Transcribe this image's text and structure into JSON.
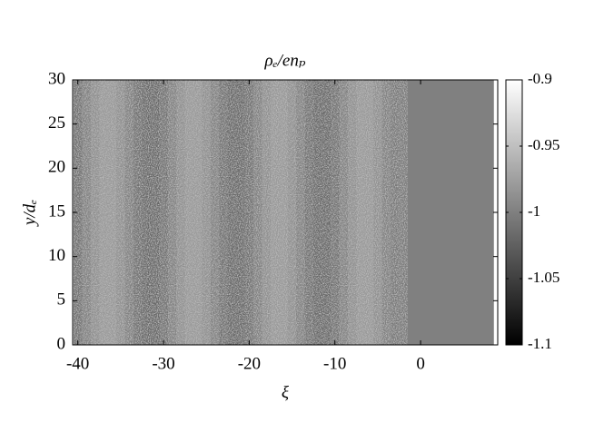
{
  "chart_data": {
    "type": "heatmap",
    "title": "ρₑ/enₚ",
    "x_label": "ξ",
    "y_label": "y/dₑ",
    "x": [
      -40,
      -39,
      -38,
      -37,
      -36,
      -35,
      -34,
      -33,
      -32,
      -31,
      -30,
      -29,
      -28,
      -27,
      -26,
      -25,
      -24,
      -23,
      -22,
      -21,
      -20,
      -19,
      -18,
      -17,
      -16,
      -15,
      -14,
      -13,
      -12,
      -11,
      -10,
      -9,
      -8,
      -7,
      -6,
      -5,
      -4,
      -3,
      -2,
      -1,
      0,
      1,
      2,
      3,
      4,
      5,
      6,
      7,
      8
    ],
    "values": [
      -1.012,
      -1,
      -0.988,
      -0.981,
      -0.981,
      -0.988,
      -1,
      -1.012,
      -1.019,
      -1.019,
      -1.012,
      -1,
      -0.988,
      -0.981,
      -0.981,
      -0.988,
      -1,
      -1.012,
      -1.019,
      -1.019,
      -1.012,
      -1,
      -0.988,
      -0.981,
      -0.981,
      -0.988,
      -1,
      -1.012,
      -1.019,
      -1.019,
      -1.012,
      -1,
      -0.988,
      -0.981,
      -0.981,
      -0.988,
      -1,
      -1.006,
      -1.005,
      -1,
      -1,
      -1,
      -1,
      -1,
      -1,
      -1,
      -1,
      -1,
      -1
    ],
    "xlim": [
      -40.6,
      9
    ],
    "xticks": [
      -40,
      -30,
      -20,
      -10,
      0
    ],
    "ylim": [
      0,
      30
    ],
    "yticks": [
      0,
      5,
      10,
      15,
      20,
      25,
      30
    ],
    "colormap": "gray",
    "clim": [
      -1.1,
      -0.9
    ],
    "cticks": [
      -1.1,
      -1.05,
      -1,
      -0.95,
      -0.9
    ]
  }
}
